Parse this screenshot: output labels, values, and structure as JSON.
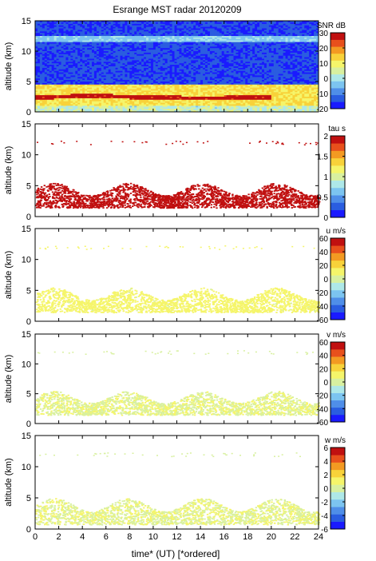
{
  "figure": {
    "title": "Esrange MST radar 20120209",
    "xlabel": "time* (UT)   [*ordered]",
    "colors": {
      "colormap": [
        "#1a1aff",
        "#2a5de0",
        "#4f8ee8",
        "#7cc4f0",
        "#aee8e8",
        "#d8f0a0",
        "#f5f56a",
        "#f8d23a",
        "#f39a22",
        "#e8501c",
        "#c01010"
      ],
      "background": "#ffffff",
      "frame": "#000000"
    }
  },
  "chart_data": [
    {
      "type": "heatmap",
      "title": "Esrange MST radar 20120209",
      "xlabel": "time* (UT)   [*ordered]",
      "ylabel": "altitude (km)",
      "xlim": [
        0,
        24
      ],
      "ylim": [
        0,
        15
      ],
      "xticks": [
        "0",
        "2",
        "4",
        "6",
        "8",
        "10",
        "12",
        "14",
        "16",
        "18",
        "20",
        "22",
        "24"
      ],
      "yticks": [
        "0",
        "5",
        "10",
        "15"
      ],
      "colorbar": {
        "label": "SNR dB",
        "ticks": [
          "30",
          "20",
          "10",
          "0",
          "-10",
          "-20"
        ],
        "range": [
          -20,
          30
        ]
      },
      "features": {
        "background": -18,
        "layer_2_5km": 25,
        "layer_1_5_4_5km": 8,
        "stripe_12km": 0
      }
    },
    {
      "type": "heatmap",
      "xlabel": "time* (UT)   [*ordered]",
      "ylabel": "altitude (km)",
      "xlim": [
        0,
        24
      ],
      "ylim": [
        0,
        15
      ],
      "xticks": [
        "0",
        "2",
        "4",
        "6",
        "8",
        "10",
        "12",
        "14",
        "16",
        "18",
        "20",
        "22",
        "24"
      ],
      "yticks": [
        "0",
        "5",
        "10",
        "15"
      ],
      "colorbar": {
        "label": "tau s",
        "ticks": [
          "2",
          "1.5",
          "1",
          "0.5",
          "0"
        ],
        "range": [
          0,
          2
        ]
      },
      "features": {
        "dominant_value": 2.0,
        "data_altitude_range": [
          1.5,
          5.5
        ]
      }
    },
    {
      "type": "heatmap",
      "xlabel": "time* (UT)   [*ordered]",
      "ylabel": "altitude (km)",
      "xlim": [
        0,
        24
      ],
      "ylim": [
        0,
        15
      ],
      "xticks": [
        "0",
        "2",
        "4",
        "6",
        "8",
        "10",
        "12",
        "14",
        "16",
        "18",
        "20",
        "22",
        "24"
      ],
      "yticks": [
        "0",
        "5",
        "10",
        "15"
      ],
      "colorbar": {
        "label": "u m/s",
        "ticks": [
          "60",
          "40",
          "20",
          "0",
          "-20",
          "-40",
          "-60"
        ],
        "range": [
          -60,
          60
        ]
      },
      "features": {
        "dominant_value": 10,
        "data_altitude_range": [
          1.5,
          5.5
        ]
      }
    },
    {
      "type": "heatmap",
      "xlabel": "time* (UT)   [*ordered]",
      "ylabel": "altitude (km)",
      "xlim": [
        0,
        24
      ],
      "ylim": [
        0,
        15
      ],
      "xticks": [
        "0",
        "2",
        "4",
        "6",
        "8",
        "10",
        "12",
        "14",
        "16",
        "18",
        "20",
        "22",
        "24"
      ],
      "yticks": [
        "0",
        "5",
        "10",
        "15"
      ],
      "colorbar": {
        "label": "v m/s",
        "ticks": [
          "60",
          "40",
          "20",
          "0",
          "-20",
          "-40",
          "-60"
        ],
        "range": [
          -60,
          60
        ]
      },
      "features": {
        "dominant_value": 5,
        "data_altitude_range": [
          1.5,
          5.5
        ]
      }
    },
    {
      "type": "heatmap",
      "xlabel": "time* (UT)   [*ordered]",
      "ylabel": "altitude (km)",
      "xlim": [
        0,
        24
      ],
      "ylim": [
        0,
        15
      ],
      "xticks": [
        "0",
        "2",
        "4",
        "6",
        "8",
        "10",
        "12",
        "14",
        "16",
        "18",
        "20",
        "22",
        "24"
      ],
      "yticks": [
        "0",
        "5",
        "10",
        "15"
      ],
      "colorbar": {
        "label": "w m/s",
        "ticks": [
          "6",
          "4",
          "2",
          "0",
          "-2",
          "-4",
          "-6"
        ],
        "range": [
          -6,
          6
        ]
      },
      "features": {
        "dominant_value": 0.5,
        "data_altitude_range": [
          0.8,
          5.0
        ]
      }
    }
  ]
}
